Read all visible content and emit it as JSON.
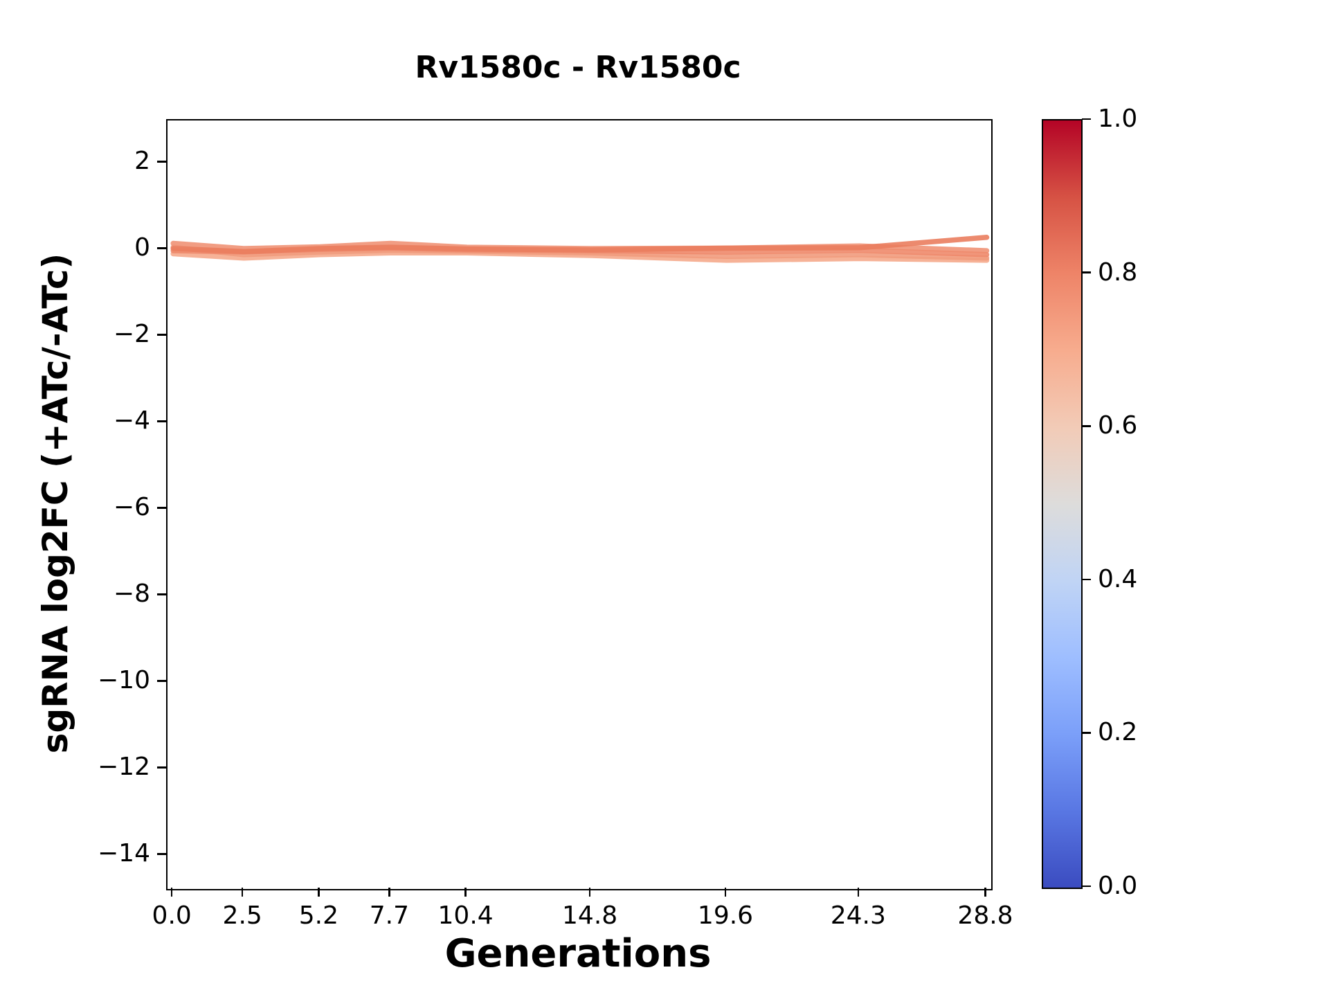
{
  "chart_data": {
    "type": "line",
    "title": "Rv1580c - Rv1580c",
    "xlabel": "Generations",
    "ylabel": "sgRNA log2FC (+ATc/-ATc)",
    "x": [
      0.0,
      2.5,
      5.2,
      7.7,
      10.4,
      14.8,
      19.6,
      24.3,
      28.8
    ],
    "xtick_labels": [
      "0.0",
      "2.5",
      "5.2",
      "7.7",
      "10.4",
      "14.8",
      "19.6",
      "24.3",
      "28.8"
    ],
    "ytick_values": [
      2,
      0,
      -2,
      -4,
      -6,
      -8,
      -10,
      -12,
      -14
    ],
    "ytick_labels": [
      "2",
      "0",
      "−2",
      "−4",
      "−6",
      "−8",
      "−10",
      "−12",
      "−14"
    ],
    "xlim": [
      -0.2,
      28.96
    ],
    "ylim": [
      -14.78,
      2.98
    ],
    "grid": false,
    "legend": "none",
    "line_width": 7.5,
    "series": [
      {
        "name": "line-1",
        "colormap_value": 0.72,
        "color": "#f5aa8c",
        "values": [
          -0.1,
          -0.2,
          -0.12,
          -0.08,
          -0.08,
          -0.14,
          -0.25,
          -0.21,
          -0.25
        ]
      },
      {
        "name": "line-2",
        "colormap_value": 0.74,
        "color": "#f19b7d",
        "values": [
          0.05,
          -0.12,
          -0.06,
          -0.02,
          -0.04,
          -0.08,
          -0.16,
          -0.12,
          -0.2
        ]
      },
      {
        "name": "line-3",
        "colormap_value": 0.76,
        "color": "#f09276",
        "values": [
          0.14,
          0.02,
          0.06,
          0.14,
          0.05,
          0.02,
          0.03,
          0.08,
          -0.03
        ]
      },
      {
        "name": "line-4",
        "colormap_value": 0.78,
        "color": "#ee8a6b",
        "values": [
          -0.03,
          -0.06,
          0.0,
          0.03,
          -0.01,
          -0.03,
          -0.06,
          -0.02,
          -0.12
        ]
      },
      {
        "name": "line-5",
        "colormap_value": 0.8,
        "color": "#ea7d5e",
        "values": [
          0.02,
          -0.05,
          0.02,
          0.05,
          0.01,
          -0.01,
          0.03,
          0.04,
          0.28
        ]
      }
    ],
    "colorbar": {
      "cmap": "coolwarm",
      "range": [
        0.0,
        1.0
      ],
      "tick_labels": [
        "1.0",
        "0.8",
        "0.6",
        "0.4",
        "0.2",
        "0.0"
      ],
      "gradient_stops": [
        {
          "pos": 0.0,
          "color": "#3b4cc0"
        },
        {
          "pos": 0.1,
          "color": "#5977e3"
        },
        {
          "pos": 0.2,
          "color": "#7b9ff9"
        },
        {
          "pos": 0.3,
          "color": "#9ebeff"
        },
        {
          "pos": 0.4,
          "color": "#c0d4f5"
        },
        {
          "pos": 0.5,
          "color": "#dddcdb"
        },
        {
          "pos": 0.6,
          "color": "#f2cbb7"
        },
        {
          "pos": 0.7,
          "color": "#f7ac8e"
        },
        {
          "pos": 0.8,
          "color": "#ee8468"
        },
        {
          "pos": 0.9,
          "color": "#d65244"
        },
        {
          "pos": 1.0,
          "color": "#b40426"
        }
      ]
    }
  }
}
